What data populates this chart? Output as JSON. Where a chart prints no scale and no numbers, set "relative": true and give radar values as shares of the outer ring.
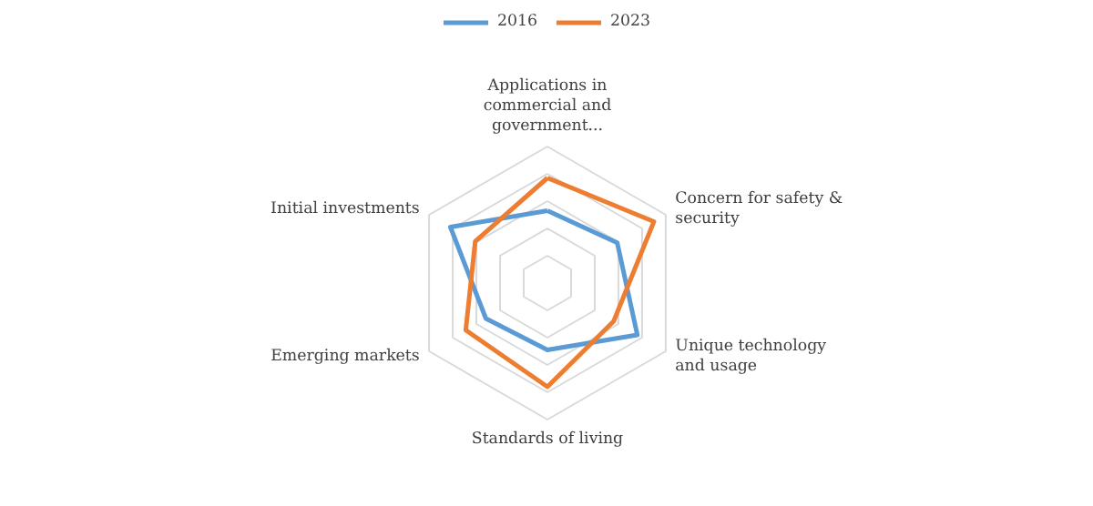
{
  "chart_data": {
    "type": "radar",
    "relative": true,
    "grid": true,
    "legend": "top",
    "line_style": "solid",
    "marker": "none",
    "categories": [
      "Applications in commercial and government...",
      "Concern for safety & security",
      "Unique technology and usage",
      "Standards of living",
      "Emerging markets",
      "Initial investments"
    ],
    "series": [
      {
        "name": "2016",
        "color": "#5b9bd5",
        "values": [
          0.53,
          0.59,
          0.76,
          0.49,
          0.52,
          0.82
        ]
      },
      {
        "name": "2023",
        "color": "#ed7d31",
        "values": [
          0.77,
          0.9,
          0.56,
          0.76,
          0.69,
          0.61
        ]
      }
    ]
  }
}
